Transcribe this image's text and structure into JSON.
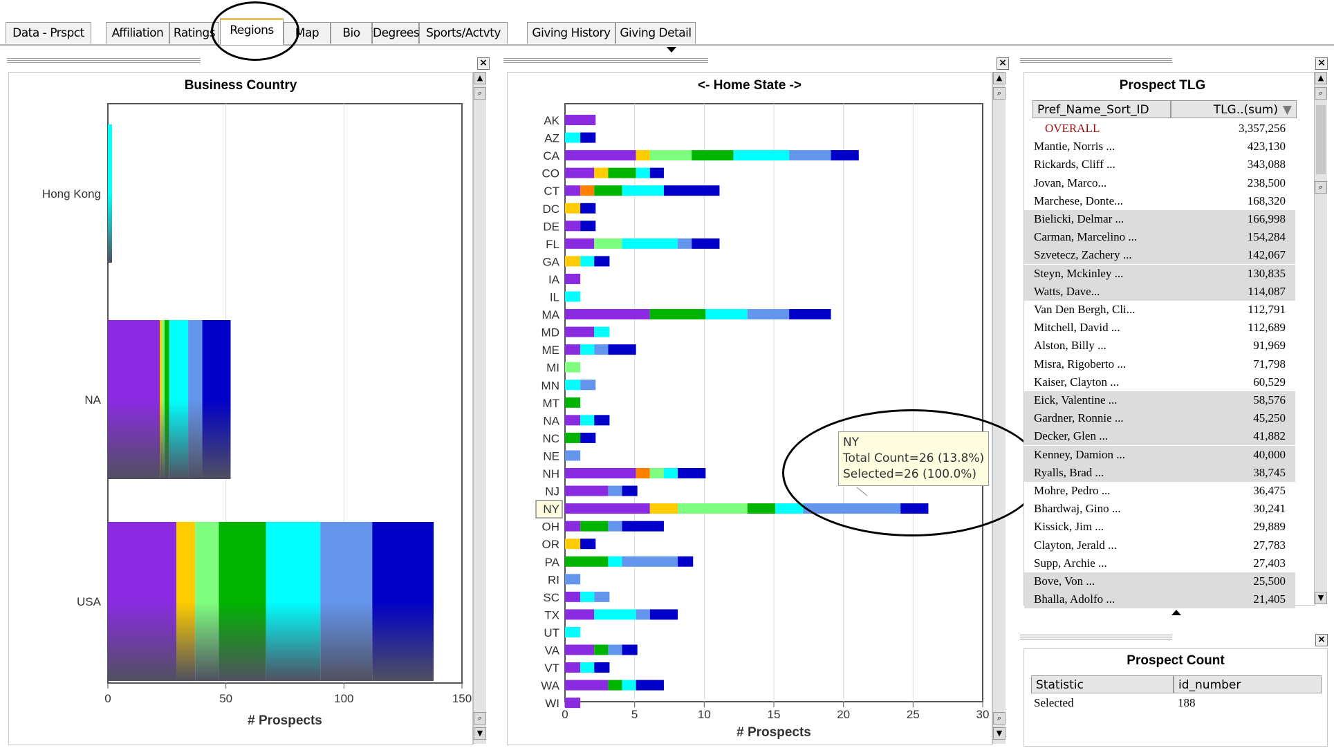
{
  "tabs": [
    {
      "label": "Data - Prspct"
    },
    {
      "label": "Affiliation"
    },
    {
      "label": "Ratings"
    },
    {
      "label": "Regions"
    },
    {
      "label": "Map"
    },
    {
      "label": "Bio"
    },
    {
      "label": "Degrees"
    },
    {
      "label": "Sports/Actvty"
    },
    {
      "label": "Giving History"
    },
    {
      "label": "Giving Detail"
    }
  ],
  "active_tab": "Regions",
  "colors": [
    "#8a2be2",
    "#ffcc00",
    "#7fff7f",
    "#00b400",
    "#00ffff",
    "#6495ed",
    "#0000c8",
    "#ff7f00"
  ],
  "business_country": {
    "title": "Business Country",
    "xlabel": "# Prospects",
    "ticks": [
      "0",
      "50",
      "100",
      "150"
    ],
    "categories": [
      {
        "name": "Hong Kong",
        "segments": [
          {
            "c": 4,
            "v": 2
          }
        ]
      },
      {
        "name": "NA",
        "segments": [
          {
            "c": 0,
            "v": 22
          },
          {
            "c": 1,
            "v": 1
          },
          {
            "c": 2,
            "v": 1
          },
          {
            "c": 3,
            "v": 2
          },
          {
            "c": 4,
            "v": 8
          },
          {
            "c": 5,
            "v": 6
          },
          {
            "c": 6,
            "v": 12
          }
        ]
      },
      {
        "name": "USA",
        "segments": [
          {
            "c": 0,
            "v": 29
          },
          {
            "c": 1,
            "v": 8
          },
          {
            "c": 2,
            "v": 10
          },
          {
            "c": 3,
            "v": 20
          },
          {
            "c": 4,
            "v": 23
          },
          {
            "c": 5,
            "v": 22
          },
          {
            "c": 6,
            "v": 26
          }
        ]
      }
    ]
  },
  "home_state": {
    "title": "<- Home State ->",
    "xlabel": "# Prospects",
    "ticks": [
      "0",
      "5",
      "10",
      "15",
      "20",
      "25",
      "30"
    ],
    "highlight": "NY",
    "states": [
      {
        "name": "AK",
        "segments": [
          {
            "c": 0,
            "v": 2.2
          }
        ]
      },
      {
        "name": "AZ",
        "segments": [
          {
            "c": 4,
            "v": 1.1
          },
          {
            "c": 6,
            "v": 1.1
          }
        ]
      },
      {
        "name": "CA",
        "segments": [
          {
            "c": 0,
            "v": 5.1
          },
          {
            "c": 1,
            "v": 1
          },
          {
            "c": 2,
            "v": 3
          },
          {
            "c": 3,
            "v": 3
          },
          {
            "c": 4,
            "v": 4
          },
          {
            "c": 5,
            "v": 3
          },
          {
            "c": 6,
            "v": 2
          }
        ]
      },
      {
        "name": "CO",
        "segments": [
          {
            "c": 0,
            "v": 2.1
          },
          {
            "c": 1,
            "v": 1
          },
          {
            "c": 3,
            "v": 2
          },
          {
            "c": 4,
            "v": 1
          },
          {
            "c": 6,
            "v": 1
          }
        ]
      },
      {
        "name": "CT",
        "segments": [
          {
            "c": 0,
            "v": 1.1
          },
          {
            "c": 7,
            "v": 1
          },
          {
            "c": 3,
            "v": 2
          },
          {
            "c": 4,
            "v": 3
          },
          {
            "c": 6,
            "v": 4
          }
        ]
      },
      {
        "name": "DC",
        "segments": [
          {
            "c": 1,
            "v": 1.1
          },
          {
            "c": 6,
            "v": 1.1
          }
        ]
      },
      {
        "name": "DE",
        "segments": [
          {
            "c": 0,
            "v": 1.1
          },
          {
            "c": 6,
            "v": 1.1
          }
        ]
      },
      {
        "name": "FL",
        "segments": [
          {
            "c": 0,
            "v": 2.1
          },
          {
            "c": 2,
            "v": 2
          },
          {
            "c": 4,
            "v": 4
          },
          {
            "c": 5,
            "v": 1
          },
          {
            "c": 6,
            "v": 2
          }
        ]
      },
      {
        "name": "GA",
        "segments": [
          {
            "c": 1,
            "v": 1.1
          },
          {
            "c": 4,
            "v": 1
          },
          {
            "c": 6,
            "v": 1.1
          }
        ]
      },
      {
        "name": "IA",
        "segments": [
          {
            "c": 0,
            "v": 1.1
          }
        ]
      },
      {
        "name": "IL",
        "segments": [
          {
            "c": 4,
            "v": 1.1
          }
        ]
      },
      {
        "name": "MA",
        "segments": [
          {
            "c": 0,
            "v": 6.1
          },
          {
            "c": 3,
            "v": 4
          },
          {
            "c": 4,
            "v": 3
          },
          {
            "c": 5,
            "v": 3
          },
          {
            "c": 6,
            "v": 3
          }
        ]
      },
      {
        "name": "MD",
        "segments": [
          {
            "c": 0,
            "v": 2.1
          },
          {
            "c": 4,
            "v": 1.1
          }
        ]
      },
      {
        "name": "ME",
        "segments": [
          {
            "c": 0,
            "v": 1.1
          },
          {
            "c": 4,
            "v": 1
          },
          {
            "c": 5,
            "v": 1
          },
          {
            "c": 6,
            "v": 2
          }
        ]
      },
      {
        "name": "MI",
        "segments": [
          {
            "c": 2,
            "v": 1.1
          }
        ]
      },
      {
        "name": "MN",
        "segments": [
          {
            "c": 4,
            "v": 1.1
          },
          {
            "c": 5,
            "v": 1.1
          }
        ]
      },
      {
        "name": "MT",
        "segments": [
          {
            "c": 3,
            "v": 1.1
          }
        ]
      },
      {
        "name": "NA",
        "segments": [
          {
            "c": 0,
            "v": 1.1
          },
          {
            "c": 4,
            "v": 1
          },
          {
            "c": 6,
            "v": 1.1
          }
        ]
      },
      {
        "name": "NC",
        "segments": [
          {
            "c": 3,
            "v": 1.1
          },
          {
            "c": 6,
            "v": 1.1
          }
        ]
      },
      {
        "name": "NE",
        "segments": [
          {
            "c": 5,
            "v": 1.1
          }
        ]
      },
      {
        "name": "NH",
        "segments": [
          {
            "c": 0,
            "v": 5.1
          },
          {
            "c": 7,
            "v": 1
          },
          {
            "c": 2,
            "v": 1
          },
          {
            "c": 4,
            "v": 1
          },
          {
            "c": 6,
            "v": 2
          }
        ]
      },
      {
        "name": "NJ",
        "segments": [
          {
            "c": 0,
            "v": 3.1
          },
          {
            "c": 5,
            "v": 1
          },
          {
            "c": 6,
            "v": 1.1
          }
        ]
      },
      {
        "name": "NY",
        "segments": [
          {
            "c": 0,
            "v": 6.1
          },
          {
            "c": 1,
            "v": 2
          },
          {
            "c": 2,
            "v": 5
          },
          {
            "c": 3,
            "v": 2
          },
          {
            "c": 4,
            "v": 2
          },
          {
            "c": 5,
            "v": 7
          },
          {
            "c": 6,
            "v": 2
          }
        ]
      },
      {
        "name": "OH",
        "segments": [
          {
            "c": 0,
            "v": 1.1
          },
          {
            "c": 3,
            "v": 2
          },
          {
            "c": 5,
            "v": 1
          },
          {
            "c": 6,
            "v": 3
          }
        ]
      },
      {
        "name": "OR",
        "segments": [
          {
            "c": 1,
            "v": 1.1
          },
          {
            "c": 6,
            "v": 1.1
          }
        ]
      },
      {
        "name": "PA",
        "segments": [
          {
            "c": 3,
            "v": 3.1
          },
          {
            "c": 4,
            "v": 1
          },
          {
            "c": 5,
            "v": 4
          },
          {
            "c": 6,
            "v": 1.1
          }
        ]
      },
      {
        "name": "RI",
        "segments": [
          {
            "c": 5,
            "v": 1.1
          }
        ]
      },
      {
        "name": "SC",
        "segments": [
          {
            "c": 0,
            "v": 1.1
          },
          {
            "c": 4,
            "v": 1
          },
          {
            "c": 5,
            "v": 1.1
          }
        ]
      },
      {
        "name": "TX",
        "segments": [
          {
            "c": 0,
            "v": 2.1
          },
          {
            "c": 4,
            "v": 3
          },
          {
            "c": 5,
            "v": 1
          },
          {
            "c": 6,
            "v": 2
          }
        ]
      },
      {
        "name": "UT",
        "segments": [
          {
            "c": 4,
            "v": 1.1
          }
        ]
      },
      {
        "name": "VA",
        "segments": [
          {
            "c": 0,
            "v": 2.1
          },
          {
            "c": 3,
            "v": 1
          },
          {
            "c": 5,
            "v": 1
          },
          {
            "c": 6,
            "v": 1.1
          }
        ]
      },
      {
        "name": "VT",
        "segments": [
          {
            "c": 0,
            "v": 1.1
          },
          {
            "c": 4,
            "v": 1
          },
          {
            "c": 6,
            "v": 1.1
          }
        ]
      },
      {
        "name": "WA",
        "segments": [
          {
            "c": 0,
            "v": 3.1
          },
          {
            "c": 3,
            "v": 1
          },
          {
            "c": 4,
            "v": 1
          },
          {
            "c": 6,
            "v": 2
          }
        ]
      },
      {
        "name": "WI",
        "segments": [
          {
            "c": 0,
            "v": 1.1
          }
        ]
      }
    ]
  },
  "tooltip": {
    "state": "NY",
    "line1": "Total Count=26 (13.8%)",
    "line2": "Selected=26 (100.0%)"
  },
  "prospect_tlg": {
    "title": "Prospect TLG",
    "col1": "Pref_Name_Sort_ID",
    "col2": "TLG..(sum)",
    "rows": [
      {
        "name": "OVERALL",
        "value": "3,357,256",
        "overall": true
      },
      {
        "name": "Mantie, Norris ...",
        "value": "423,130"
      },
      {
        "name": "Rickards, Cliff  ...",
        "value": "343,088"
      },
      {
        "name": "Jovan, Marco...",
        "value": "238,500"
      },
      {
        "name": "Marchese, Donte...",
        "value": "168,320"
      },
      {
        "name": "Bielicki, Delmar  ...",
        "value": "166,998",
        "gray": true
      },
      {
        "name": "Carman, Marcelino ...",
        "value": "154,284",
        "gray": true
      },
      {
        "name": "Szvetecz, Zachery ...",
        "value": "142,067",
        "gray": true
      },
      {
        "name": "Steyn, Mckinley ...",
        "value": "130,835",
        "gray": true
      },
      {
        "name": "Watts, Dave...",
        "value": "114,087",
        "gray": true
      },
      {
        "name": "Van Den Bergh, Cli...",
        "value": "112,791"
      },
      {
        "name": "Mitchell, David ...",
        "value": "112,689"
      },
      {
        "name": "Alston, Billy ...",
        "value": "91,969"
      },
      {
        "name": "Misra, Rigoberto ...",
        "value": "71,798"
      },
      {
        "name": "Kaiser, Clayton ...",
        "value": "60,529"
      },
      {
        "name": "Eick, Valentine  ...",
        "value": "58,576",
        "gray": true
      },
      {
        "name": "Gardner, Ronnie ...",
        "value": "45,250",
        "gray": true
      },
      {
        "name": "Decker, Glen  ...",
        "value": "41,882",
        "gray": true
      },
      {
        "name": "Kenney, Damion ...",
        "value": "40,000",
        "gray": true
      },
      {
        "name": "Ryalls, Brad ...",
        "value": "38,745",
        "gray": true
      },
      {
        "name": "Mohre, Pedro ...",
        "value": "36,475"
      },
      {
        "name": "Bhardwaj, Gino  ...",
        "value": "30,241"
      },
      {
        "name": "Kissick, Jim  ...",
        "value": "29,889"
      },
      {
        "name": "Clayton, Jerald ...",
        "value": "27,783"
      },
      {
        "name": "Supp, Archie ...",
        "value": "27,403"
      },
      {
        "name": "Bove, Von ...",
        "value": "25,500",
        "gray": true
      },
      {
        "name": "Bhalla, Adolfo ...",
        "value": "21,405",
        "gray": true
      }
    ]
  },
  "prospect_count": {
    "title": "Prospect Count",
    "col1": "Statistic",
    "col2": "id_number",
    "row_label": "Selected",
    "row_value": "188"
  },
  "icons": {
    "close": "×",
    "up": "▲",
    "down": "▼",
    "zoom": "🔍"
  }
}
